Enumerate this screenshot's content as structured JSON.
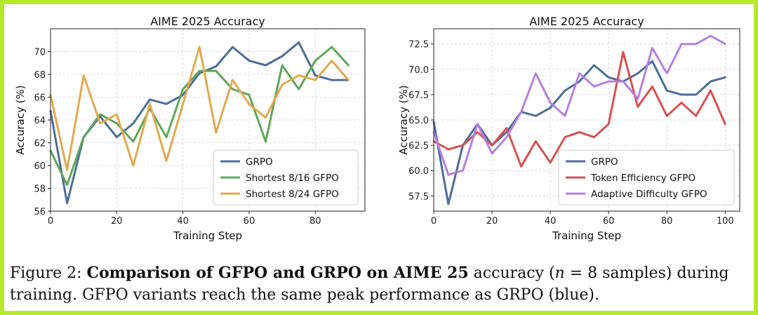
{
  "colors": {
    "frame": "#b5ea2a",
    "blue": "#4c6e96",
    "green": "#5fa65b",
    "orange": "#e2a94f",
    "red": "#d65050",
    "purple": "#b57fe0"
  },
  "chart_data": [
    {
      "type": "line",
      "title": "AIME 2025 Accuracy",
      "xlabel": "Training Step",
      "ylabel": "Accuracy (%)",
      "xlim": [
        0,
        95
      ],
      "ylim": [
        56,
        72
      ],
      "xticks": [
        0,
        20,
        40,
        60,
        80
      ],
      "yticks": [
        56,
        58,
        60,
        62,
        64,
        66,
        68,
        70
      ],
      "grid": true,
      "legend_position": "lower-right",
      "x": [
        0,
        5,
        10,
        15,
        20,
        25,
        30,
        35,
        40,
        45,
        50,
        55,
        60,
        65,
        70,
        75,
        80,
        85,
        90
      ],
      "series": [
        {
          "name": "GRPO",
          "color": "#4c6e96",
          "values": [
            64.8,
            56.7,
            62.5,
            64.3,
            62.5,
            63.7,
            65.8,
            65.4,
            66.2,
            68.1,
            68.7,
            70.4,
            69.2,
            68.8,
            69.6,
            70.8,
            67.9,
            67.5,
            67.5
          ]
        },
        {
          "name": "Shortest 8/16 GFPO",
          "color": "#5fa65b",
          "values": [
            61.3,
            58.3,
            62.5,
            64.5,
            63.7,
            62.1,
            65.0,
            62.5,
            66.7,
            68.3,
            68.3,
            66.7,
            66.2,
            62.1,
            68.8,
            66.7,
            69.2,
            70.4,
            68.8
          ]
        },
        {
          "name": "Shortest 8/24 GFPO",
          "color": "#e2a94f",
          "values": [
            66.2,
            59.6,
            67.9,
            63.7,
            64.5,
            60.0,
            65.4,
            60.4,
            65.4,
            70.4,
            62.9,
            67.5,
            65.4,
            64.2,
            67.1,
            67.9,
            67.5,
            69.2,
            67.5
          ]
        }
      ]
    },
    {
      "type": "line",
      "title": "AIME 2025 Accuracy",
      "xlabel": "Training Step",
      "ylabel": "Accuracy (%)",
      "xlim": [
        0,
        105
      ],
      "ylim": [
        56,
        74
      ],
      "xticks": [
        0,
        20,
        40,
        60,
        80,
        100
      ],
      "yticks": [
        57.5,
        60.0,
        62.5,
        65.0,
        67.5,
        70.0,
        72.5
      ],
      "grid": true,
      "legend_position": "lower-right",
      "x": [
        0,
        5,
        10,
        15,
        20,
        25,
        30,
        35,
        40,
        45,
        50,
        55,
        60,
        65,
        70,
        75,
        80,
        85,
        90,
        95,
        100
      ],
      "series": [
        {
          "name": "GRPO",
          "color": "#4c6e96",
          "values": [
            64.8,
            56.7,
            62.5,
            64.6,
            62.5,
            63.8,
            65.8,
            65.4,
            66.2,
            67.9,
            68.8,
            70.4,
            69.2,
            68.8,
            69.6,
            70.8,
            67.9,
            67.5,
            67.5,
            68.8,
            69.2
          ]
        },
        {
          "name": "Token Efficiency GFPO",
          "color": "#d65050",
          "values": [
            62.9,
            62.1,
            62.5,
            63.8,
            62.5,
            64.2,
            60.4,
            62.9,
            60.8,
            63.3,
            63.8,
            63.3,
            64.6,
            71.7,
            66.3,
            68.3,
            65.4,
            66.7,
            65.4,
            67.9,
            64.6
          ]
        },
        {
          "name": "Adaptive Difficulty GFPO",
          "color": "#b57fe0",
          "values": [
            63.8,
            59.6,
            60.0,
            64.6,
            61.7,
            63.3,
            65.8,
            69.6,
            66.7,
            65.4,
            69.6,
            68.3,
            68.8,
            68.8,
            67.1,
            72.1,
            69.6,
            72.5,
            72.5,
            73.3,
            72.5
          ]
        }
      ]
    }
  ],
  "caption": {
    "prefix": "Figure 2: ",
    "bold": "Comparison of GFPO and GRPO on AIME 25",
    "mid": " accuracy (",
    "n": "n",
    "eq": " = 8 samples) during training. GFPO variants reach the same peak performance as GRPO (blue)."
  }
}
